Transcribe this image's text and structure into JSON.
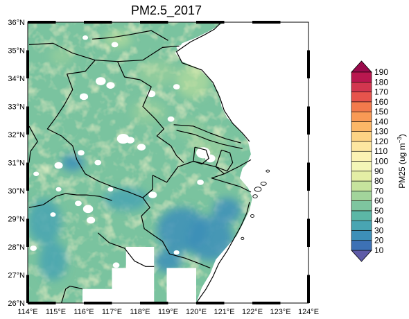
{
  "map": {
    "title": "PM2.5_2017",
    "extent": {
      "lon": [
        114,
        124
      ],
      "lat": [
        26,
        36
      ]
    },
    "x_ticks": [
      {
        "value": 114,
        "label": "114°E"
      },
      {
        "value": 115,
        "label": "115°E"
      },
      {
        "value": 116,
        "label": "116°E"
      },
      {
        "value": 117,
        "label": "117°E"
      },
      {
        "value": 118,
        "label": "118°E"
      },
      {
        "value": 119,
        "label": "119°E"
      },
      {
        "value": 120,
        "label": "120°E"
      },
      {
        "value": 121,
        "label": "121°E"
      },
      {
        "value": 122,
        "label": "122°E"
      },
      {
        "value": 123,
        "label": "123°E"
      },
      {
        "value": 124,
        "label": "124°E"
      }
    ],
    "y_ticks": [
      {
        "value": 26,
        "label": "26°N"
      },
      {
        "value": 27,
        "label": "27°N"
      },
      {
        "value": 28,
        "label": "28°N"
      },
      {
        "value": 29,
        "label": "29°N"
      },
      {
        "value": 30,
        "label": "30°N"
      },
      {
        "value": 31,
        "label": "31°N"
      },
      {
        "value": 32,
        "label": "32°N"
      },
      {
        "value": 33,
        "label": "33°N"
      },
      {
        "value": 34,
        "label": "34°N"
      },
      {
        "value": 35,
        "label": "35°N"
      },
      {
        "value": 36,
        "label": "36°N"
      }
    ],
    "field": {
      "variable": "PM25",
      "data_edge": [
        [
          121.0,
          36.0
        ],
        [
          120.5,
          35.7
        ],
        [
          120.0,
          35.45
        ],
        [
          119.5,
          35.25
        ],
        [
          119.25,
          34.9
        ],
        [
          119.5,
          34.6
        ],
        [
          120.1,
          34.35
        ],
        [
          120.5,
          33.95
        ],
        [
          120.8,
          33.5
        ],
        [
          120.9,
          33.0
        ],
        [
          121.1,
          32.6
        ],
        [
          121.6,
          32.1
        ],
        [
          121.85,
          31.75
        ],
        [
          121.95,
          31.3
        ],
        [
          121.8,
          30.95
        ],
        [
          121.65,
          30.8
        ],
        [
          121.55,
          30.45
        ],
        [
          121.85,
          30.1
        ],
        [
          122.0,
          29.75
        ],
        [
          121.9,
          29.3
        ],
        [
          121.7,
          28.9
        ],
        [
          121.45,
          28.4
        ],
        [
          121.05,
          27.95
        ],
        [
          120.7,
          27.55
        ],
        [
          120.5,
          27.05
        ],
        [
          120.2,
          26.55
        ],
        [
          120.0,
          26.0
        ]
      ],
      "no_data_rects": [
        {
          "lon": [
            115.95,
            117.0
          ],
          "lat": [
            26.0,
            26.5
          ]
        },
        {
          "lon": [
            117.0,
            118.5
          ],
          "lat": [
            26.0,
            27.25
          ]
        },
        {
          "lon": [
            117.5,
            118.5
          ],
          "lat": [
            27.2,
            28.0
          ]
        },
        {
          "lon": [
            118.95,
            120.0
          ],
          "lat": [
            26.0,
            27.25
          ]
        }
      ],
      "no_data_spots": [
        {
          "lon": 116.05,
          "lat": 35.45,
          "r": 0.1
        },
        {
          "lon": 117.1,
          "lat": 35.2,
          "r": 0.12
        },
        {
          "lon": 119.4,
          "lat": 35.1,
          "r": 0.1
        },
        {
          "lon": 116.6,
          "lat": 33.9,
          "r": 0.18
        },
        {
          "lon": 116.95,
          "lat": 33.75,
          "r": 0.15
        },
        {
          "lon": 116.0,
          "lat": 33.35,
          "r": 0.15
        },
        {
          "lon": 118.4,
          "lat": 33.45,
          "r": 0.15
        },
        {
          "lon": 119.3,
          "lat": 33.7,
          "r": 0.12
        },
        {
          "lon": 119.1,
          "lat": 32.55,
          "r": 0.12
        },
        {
          "lon": 117.4,
          "lat": 31.85,
          "r": 0.22
        },
        {
          "lon": 117.65,
          "lat": 31.8,
          "r": 0.15
        },
        {
          "lon": 118.05,
          "lat": 31.55,
          "r": 0.15
        },
        {
          "lon": 115.9,
          "lat": 31.35,
          "r": 0.12
        },
        {
          "lon": 116.5,
          "lat": 31.0,
          "r": 0.12
        },
        {
          "lon": 115.1,
          "lat": 30.9,
          "r": 0.15
        },
        {
          "lon": 120.25,
          "lat": 31.35,
          "r": 0.25
        },
        {
          "lon": 120.5,
          "lat": 31.15,
          "r": 0.18
        },
        {
          "lon": 114.3,
          "lat": 30.6,
          "r": 0.1
        },
        {
          "lon": 115.1,
          "lat": 30.05,
          "r": 0.1
        },
        {
          "lon": 116.95,
          "lat": 30.05,
          "r": 0.1
        },
        {
          "lon": 120.15,
          "lat": 30.3,
          "r": 0.12
        },
        {
          "lon": 115.8,
          "lat": 29.55,
          "r": 0.12
        },
        {
          "lon": 116.15,
          "lat": 29.35,
          "r": 0.18
        },
        {
          "lon": 114.9,
          "lat": 29.15,
          "r": 0.1
        },
        {
          "lon": 116.25,
          "lat": 28.95,
          "r": 0.15
        },
        {
          "lon": 118.45,
          "lat": 29.85,
          "r": 0.15
        },
        {
          "lon": 114.2,
          "lat": 27.95,
          "r": 0.12
        },
        {
          "lon": 117.15,
          "lat": 27.35,
          "r": 0.12
        },
        {
          "lon": 119.3,
          "lat": 27.8,
          "r": 0.1
        },
        {
          "lon": 119.55,
          "lat": 26.35,
          "r": 0.1
        }
      ],
      "low_zones": [
        {
          "lon": 115.6,
          "lat": 31.0,
          "rx": 0.4,
          "ry": 0.3,
          "value": 28
        },
        {
          "lon": 114.6,
          "lat": 28.9,
          "rx": 0.6,
          "ry": 0.8,
          "value": 30
        },
        {
          "lon": 114.9,
          "lat": 27.5,
          "rx": 0.5,
          "ry": 0.7,
          "value": 32
        },
        {
          "lon": 119.5,
          "lat": 28.6,
          "rx": 0.9,
          "ry": 0.8,
          "value": 26
        },
        {
          "lon": 120.5,
          "lat": 28.3,
          "rx": 0.8,
          "ry": 0.8,
          "value": 22
        },
        {
          "lon": 121.1,
          "lat": 29.3,
          "rx": 0.5,
          "ry": 0.45,
          "value": 24
        },
        {
          "lon": 117.5,
          "lat": 29.7,
          "rx": 0.8,
          "ry": 0.4,
          "value": 34
        },
        {
          "lon": 119.0,
          "lat": 27.5,
          "rx": 0.5,
          "ry": 0.4,
          "value": 28
        }
      ],
      "high_zones": [
        {
          "lon": 117.2,
          "lat": 35.4,
          "rx": 0.5,
          "ry": 0.3,
          "value": 70
        },
        {
          "lon": 118.6,
          "lat": 34.2,
          "rx": 0.7,
          "ry": 0.45,
          "value": 68
        },
        {
          "lon": 119.9,
          "lat": 33.9,
          "rx": 0.6,
          "ry": 0.6,
          "value": 72
        },
        {
          "lon": 118.3,
          "lat": 32.8,
          "rx": 0.6,
          "ry": 0.4,
          "value": 64
        },
        {
          "lon": 120.5,
          "lat": 31.6,
          "rx": 0.7,
          "ry": 0.4,
          "value": 66
        },
        {
          "lon": 119.8,
          "lat": 32.2,
          "rx": 0.5,
          "ry": 0.3,
          "value": 64
        },
        {
          "lon": 115.2,
          "lat": 34.8,
          "rx": 0.4,
          "ry": 0.3,
          "value": 62
        }
      ]
    },
    "boundaries": [
      {
        "name": "shandong-border",
        "lonlat": [
          [
            114.05,
            35.2
          ],
          [
            114.9,
            35.25
          ],
          [
            115.6,
            34.9
          ],
          [
            116.4,
            34.65
          ],
          [
            117.2,
            34.6
          ],
          [
            118.1,
            34.65
          ],
          [
            118.8,
            35.1
          ],
          [
            119.4,
            35.15
          ]
        ]
      },
      {
        "name": "coast-north",
        "lonlat": [
          [
            120.9,
            36.0
          ],
          [
            120.65,
            35.75
          ],
          [
            120.3,
            35.55
          ],
          [
            119.8,
            35.3
          ],
          [
            119.3,
            34.95
          ],
          [
            119.5,
            34.55
          ],
          [
            120.2,
            34.3
          ],
          [
            120.6,
            33.85
          ],
          [
            120.85,
            33.3
          ],
          [
            121.0,
            32.85
          ],
          [
            121.3,
            32.4
          ],
          [
            121.65,
            32.05
          ],
          [
            121.9,
            31.75
          ]
        ]
      },
      {
        "name": "north-interior-border",
        "lonlat": [
          [
            116.3,
            35.4
          ],
          [
            116.95,
            35.45
          ],
          [
            117.6,
            35.55
          ],
          [
            118.4,
            35.7
          ],
          [
            119.0,
            35.35
          ]
        ]
      },
      {
        "name": "henan-anhui-border",
        "lonlat": [
          [
            116.4,
            34.65
          ],
          [
            116.05,
            34.25
          ],
          [
            115.4,
            34.15
          ],
          [
            115.6,
            33.6
          ],
          [
            115.3,
            33.05
          ],
          [
            115.0,
            32.6
          ],
          [
            114.7,
            32.2
          ],
          [
            115.2,
            31.95
          ],
          [
            115.6,
            31.6
          ],
          [
            115.75,
            31.1
          ]
        ]
      },
      {
        "name": "anhui-jiangsu-border",
        "lonlat": [
          [
            117.2,
            34.6
          ],
          [
            117.45,
            34.05
          ],
          [
            118.0,
            33.95
          ],
          [
            118.4,
            33.7
          ],
          [
            118.1,
            33.0
          ],
          [
            118.55,
            32.55
          ],
          [
            118.85,
            32.2
          ],
          [
            118.6,
            31.95
          ],
          [
            119.1,
            31.6
          ],
          [
            119.3,
            31.25
          ],
          [
            119.55,
            31.0
          ]
        ]
      },
      {
        "name": "yangtze-north-bank",
        "lonlat": [
          [
            119.2,
            32.35
          ],
          [
            119.9,
            32.3
          ],
          [
            120.5,
            32.05
          ],
          [
            121.05,
            31.85
          ],
          [
            121.6,
            31.7
          ]
        ]
      },
      {
        "name": "yangtze-south-bank",
        "lonlat": [
          [
            119.3,
            32.15
          ],
          [
            119.95,
            32.0
          ],
          [
            120.45,
            31.8
          ],
          [
            120.95,
            31.65
          ],
          [
            121.4,
            31.55
          ],
          [
            121.65,
            31.5
          ]
        ]
      },
      {
        "name": "taihu-shore",
        "lonlat": [
          [
            119.95,
            31.55
          ],
          [
            120.35,
            31.45
          ],
          [
            120.45,
            31.15
          ],
          [
            120.2,
            30.95
          ],
          [
            119.9,
            31.05
          ],
          [
            119.95,
            31.55
          ]
        ]
      },
      {
        "name": "shanghai-border",
        "lonlat": [
          [
            120.9,
            31.45
          ],
          [
            121.2,
            31.35
          ],
          [
            121.3,
            31.0
          ],
          [
            121.1,
            30.7
          ],
          [
            120.7,
            30.85
          ],
          [
            120.9,
            31.45
          ]
        ]
      },
      {
        "name": "hangzhou-bay-coast",
        "lonlat": [
          [
            121.95,
            31.1
          ],
          [
            121.5,
            30.85
          ],
          [
            121.0,
            30.6
          ],
          [
            120.55,
            30.45
          ],
          [
            121.05,
            30.3
          ],
          [
            121.55,
            30.15
          ],
          [
            121.95,
            29.95
          ]
        ]
      },
      {
        "name": "zhejiang-north-border",
        "lonlat": [
          [
            118.45,
            30.55
          ],
          [
            118.95,
            30.3
          ],
          [
            119.35,
            30.85
          ],
          [
            119.9,
            31.05
          ],
          [
            120.7,
            30.85
          ],
          [
            121.0,
            30.6
          ]
        ]
      },
      {
        "name": "hubei-anhui-border",
        "lonlat": [
          [
            115.75,
            31.1
          ],
          [
            116.05,
            30.6
          ],
          [
            116.5,
            30.35
          ],
          [
            117.0,
            30.15
          ],
          [
            117.6,
            29.95
          ],
          [
            118.1,
            29.75
          ],
          [
            118.45,
            30.05
          ],
          [
            118.45,
            30.55
          ]
        ]
      },
      {
        "name": "hubei-jiangxi-border",
        "lonlat": [
          [
            114.05,
            29.4
          ],
          [
            114.55,
            29.5
          ],
          [
            115.0,
            29.8
          ],
          [
            115.35,
            29.9
          ],
          [
            115.75,
            29.85
          ],
          [
            116.1,
            29.85
          ],
          [
            116.55,
            29.8
          ],
          [
            117.0,
            29.65
          ]
        ]
      },
      {
        "name": "anhui-jiangxi-zhejiang-border",
        "lonlat": [
          [
            118.1,
            29.75
          ],
          [
            118.35,
            29.4
          ],
          [
            118.05,
            29.1
          ],
          [
            118.15,
            28.65
          ],
          [
            118.5,
            28.4
          ],
          [
            118.8,
            28.2
          ],
          [
            119.05,
            27.75
          ],
          [
            119.6,
            27.6
          ],
          [
            120.0,
            27.45
          ],
          [
            120.5,
            27.25
          ]
        ]
      },
      {
        "name": "jiangxi-fujian-border",
        "lonlat": [
          [
            116.5,
            28.5
          ],
          [
            116.9,
            28.15
          ],
          [
            117.45,
            27.95
          ],
          [
            117.8,
            27.5
          ],
          [
            118.2,
            27.3
          ],
          [
            118.5,
            27.3
          ]
        ]
      },
      {
        "name": "west-hubei-border",
        "lonlat": [
          [
            114.05,
            32.3
          ],
          [
            114.35,
            31.75
          ],
          [
            114.1,
            31.4
          ],
          [
            114.05,
            31.0
          ]
        ]
      },
      {
        "name": "south-jiangxi-border",
        "lonlat": [
          [
            115.2,
            26.0
          ],
          [
            115.35,
            26.5
          ],
          [
            115.5,
            26.6
          ],
          [
            115.75,
            26.55
          ],
          [
            115.95,
            26.5
          ]
        ]
      },
      {
        "name": "fujian-coast",
        "lonlat": [
          [
            120.0,
            26.0
          ],
          [
            120.35,
            26.5
          ],
          [
            120.6,
            26.95
          ],
          [
            120.8,
            27.4
          ],
          [
            121.1,
            27.85
          ],
          [
            121.35,
            28.3
          ],
          [
            121.6,
            28.75
          ],
          [
            121.8,
            29.2
          ],
          [
            121.9,
            29.6
          ]
        ]
      }
    ],
    "islands": [
      {
        "lon": 122.2,
        "lat": 30.05,
        "rx": 0.12,
        "ry": 0.08
      },
      {
        "lon": 122.4,
        "lat": 30.25,
        "rx": 0.1,
        "ry": 0.06
      },
      {
        "lon": 122.1,
        "lat": 29.8,
        "rx": 0.08,
        "ry": 0.06
      },
      {
        "lon": 122.0,
        "lat": 29.1,
        "rx": 0.06,
        "ry": 0.05
      },
      {
        "lon": 121.65,
        "lat": 28.3,
        "rx": 0.05,
        "ry": 0.04
      },
      {
        "lon": 122.55,
        "lat": 30.7,
        "rx": 0.06,
        "ry": 0.04
      }
    ]
  },
  "colorbar": {
    "label": "PM25 (ug m",
    "label_exponent": "−3",
    "label_close": ")",
    "levels": [
      10,
      20,
      30,
      40,
      50,
      60,
      70,
      80,
      90,
      100,
      110,
      120,
      130,
      140,
      150,
      160,
      170,
      180,
      190
    ],
    "colors": [
      "#5e5ba7",
      "#3d71b5",
      "#3d8fb8",
      "#49a5b2",
      "#5cb7a6",
      "#7ec59f",
      "#a2d49b",
      "#c6e39d",
      "#e4eea5",
      "#f4f6b7",
      "#fbf2b3",
      "#fde6a0",
      "#fdd384",
      "#fcb767",
      "#f99a55",
      "#f37a4c",
      "#e6534c",
      "#d2364f",
      "#b9174f",
      "#9a0a4b"
    ]
  }
}
